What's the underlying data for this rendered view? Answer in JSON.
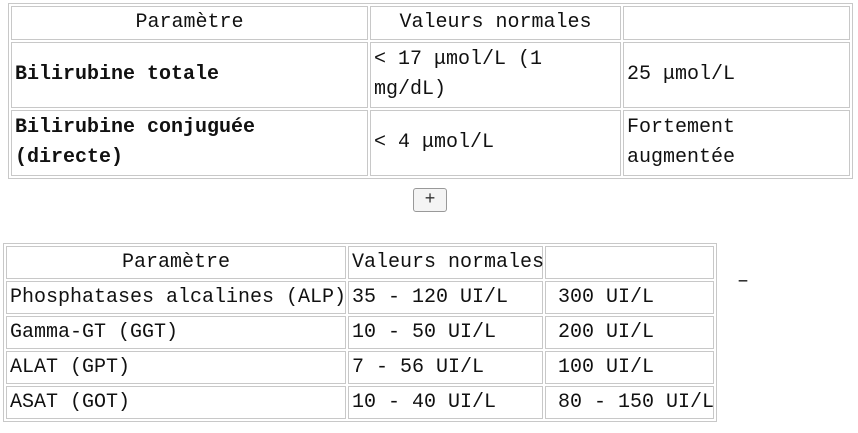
{
  "table1": {
    "header": [
      "Paramètre",
      "Valeurs normales"
    ],
    "rows": [
      [
        "Bilirubine totale",
        "< 17 μmol/L (1 mg/dL)",
        "25 μmol/L"
      ],
      [
        "Bilirubine conjuguée (directe)",
        "< 4 μmol/L",
        "Fortement augmentée"
      ]
    ]
  },
  "expand_button": "+",
  "table2": {
    "header": [
      "Paramètre",
      "Valeurs normales"
    ],
    "rows": [
      [
        "Phosphatases alcalines (ALP)",
        "35 - 120 UI/L",
        "300 UI/L"
      ],
      [
        "Gamma-GT (GGT)",
        "10 - 50 UI/L",
        "200 UI/L"
      ],
      [
        "ALAT (GPT)",
        "7 - 56 UI/L",
        "100 UI/L"
      ],
      [
        "ASAT (GOT)",
        "10 - 40 UI/L",
        "80 - 150 UI/L"
      ]
    ]
  },
  "collapse_mark": "–"
}
